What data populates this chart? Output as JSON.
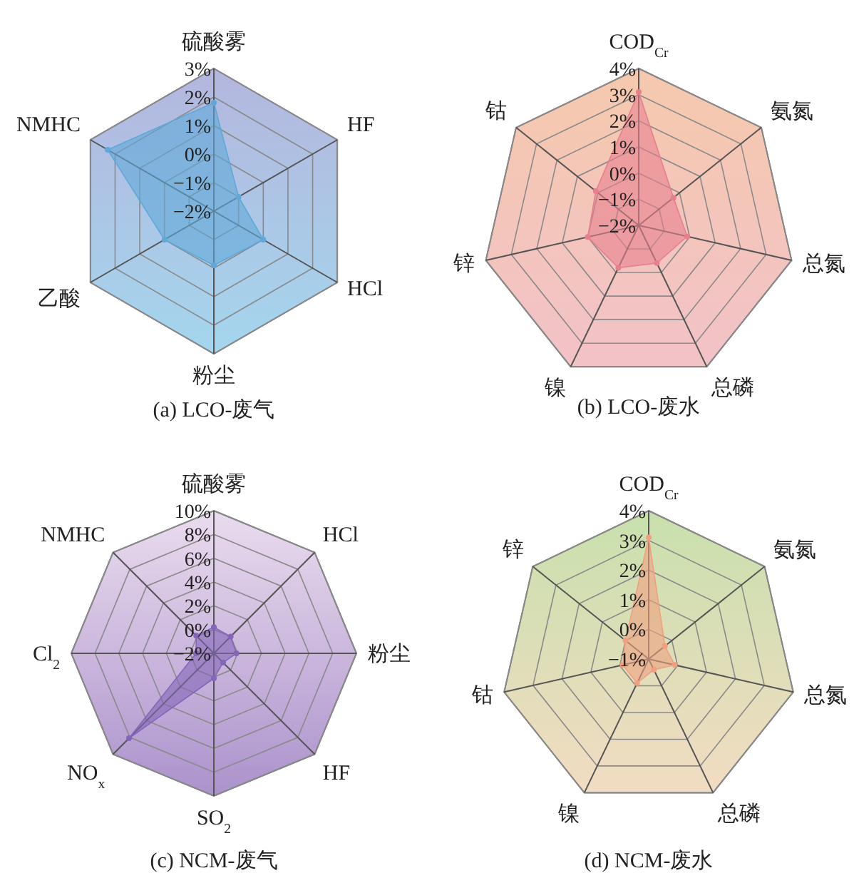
{
  "chart_data": [
    {
      "type": "radar",
      "title": "(a) LCO-废气",
      "categories": [
        "硫酸雾",
        "HF",
        "HCl",
        "粉尘",
        "乙酸",
        "NMHC"
      ],
      "ylim": [
        -2,
        3
      ],
      "yticks": [
        {
          "value": -2,
          "label": "−2%"
        },
        {
          "value": -1,
          "label": "−1%"
        },
        {
          "value": 0,
          "label": "0%"
        },
        {
          "value": 1,
          "label": "1%"
        },
        {
          "value": 2,
          "label": "2%"
        },
        {
          "value": 3,
          "label": "3%"
        }
      ],
      "grid": true,
      "marker": "circle",
      "series": [
        {
          "color": "#5fa8d8",
          "values": [
            1.8,
            -1.0,
            0.0,
            -0.1,
            0.0,
            2.3
          ]
        }
      ]
    },
    {
      "type": "radar",
      "title": "(b) LCO-废水",
      "categories": [
        "COD$_{Cr}$",
        "氨氮",
        "总氮",
        "总磷",
        "镍",
        "锌",
        "钴"
      ],
      "ylim": [
        -2,
        4
      ],
      "yticks": [
        {
          "value": -2,
          "label": "−2%"
        },
        {
          "value": -1,
          "label": "−1%"
        },
        {
          "value": 0,
          "label": "0%"
        },
        {
          "value": 1,
          "label": "1%"
        },
        {
          "value": 2,
          "label": "2%"
        },
        {
          "value": 3,
          "label": "3%"
        },
        {
          "value": 4,
          "label": "4%"
        }
      ],
      "grid": true,
      "marker": "circle",
      "series": [
        {
          "color": "#e7808e",
          "values": [
            3.1,
            -0.3,
            -0.1,
            -0.4,
            -0.2,
            0.0,
            0.1
          ]
        }
      ]
    },
    {
      "type": "radar",
      "title": "(c) NCM-废气",
      "categories": [
        "硫酸雾",
        "HCl",
        "粉尘",
        "HF",
        "SO$_{2}$",
        "NO$_{x}$",
        "Cl$_{2}$",
        "NMHC"
      ],
      "ylim": [
        -2,
        10
      ],
      "yticks": [
        {
          "value": -2,
          "label": "−2%"
        },
        {
          "value": 0,
          "label": "0%"
        },
        {
          "value": 2,
          "label": "2%"
        },
        {
          "value": 4,
          "label": "4%"
        },
        {
          "value": 6,
          "label": "6%"
        },
        {
          "value": 8,
          "label": "8%"
        },
        {
          "value": 10,
          "label": "10%"
        }
      ],
      "grid": true,
      "marker": "circle",
      "series": [
        {
          "color": "#8466b8",
          "values": [
            0.2,
            0.0,
            -0.1,
            -0.9,
            0.1,
            8.1,
            -0.5,
            0.1
          ]
        }
      ]
    },
    {
      "type": "radar",
      "title": "(d) NCM-废水",
      "categories": [
        "COD$_{Cr}$",
        "氨氮",
        "总氮",
        "总磷",
        "镍",
        "钴",
        "锌"
      ],
      "ylim": [
        -1,
        4
      ],
      "yticks": [
        {
          "value": -1,
          "label": "−1%"
        },
        {
          "value": 0,
          "label": "0%"
        },
        {
          "value": 1,
          "label": "1%"
        },
        {
          "value": 2,
          "label": "2%"
        },
        {
          "value": 3,
          "label": "3%"
        },
        {
          "value": 4,
          "label": "4%"
        }
      ],
      "grid": true,
      "marker": "circle",
      "series": [
        {
          "color": "#f0a080",
          "values": [
            3.1,
            -0.3,
            -0.1,
            -0.6,
            -0.1,
            -0.1,
            0.0
          ]
        }
      ]
    }
  ]
}
